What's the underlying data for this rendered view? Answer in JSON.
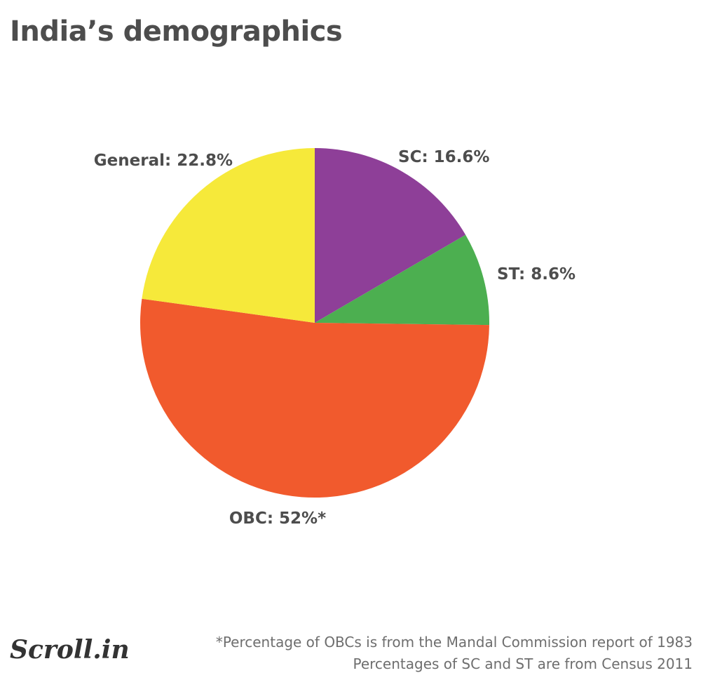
{
  "chart_data": {
    "type": "pie",
    "title": "India’s demographics",
    "slices": [
      {
        "name": "SC",
        "value": 16.6,
        "label": "SC: 16.6%",
        "color": "#8e3f98"
      },
      {
        "name": "ST",
        "value": 8.6,
        "label": "ST: 8.6%",
        "color": "#4caf50"
      },
      {
        "name": "OBC",
        "value": 52,
        "label": "OBC: 52%*",
        "color": "#f15a2d"
      },
      {
        "name": "General",
        "value": 22.8,
        "label": "General: 22.8%",
        "color": "#f6e93a"
      }
    ]
  },
  "footer": {
    "logo": "Scroll.in",
    "notes": [
      "*Percentage of OBCs is from the Mandal Commission report of 1983",
      "Percentages of SC and ST are from Census 2011"
    ]
  }
}
